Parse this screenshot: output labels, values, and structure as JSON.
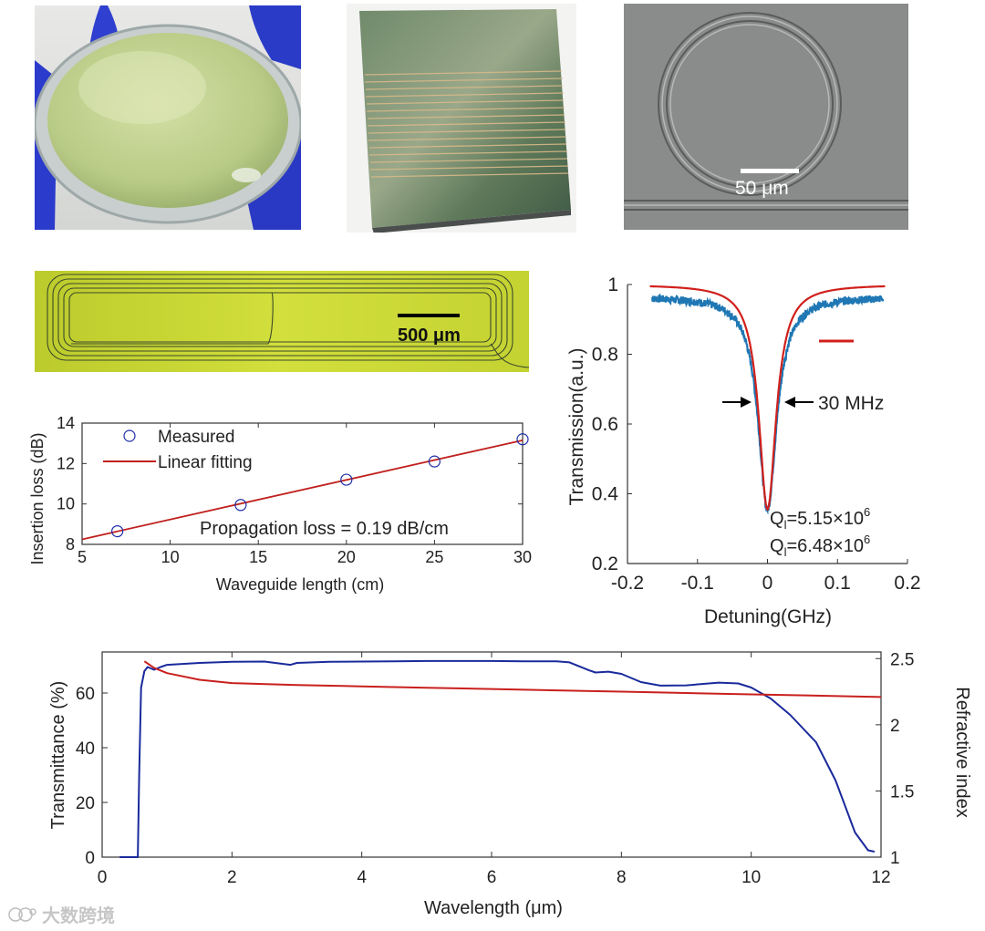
{
  "photos": {
    "sem_scale_label": "50 μm",
    "micro_scale_label": "500 μm"
  },
  "watermark": "大数跨境",
  "chart_data": [
    {
      "type": "scatter",
      "xlabel": "Waveguide length (cm)",
      "ylabel": "Insertion loss (dB)",
      "xlim": [
        5,
        30
      ],
      "ylim": [
        8,
        14
      ],
      "xticks": [
        5,
        10,
        15,
        20,
        25,
        30
      ],
      "yticks": [
        8,
        10,
        12,
        14
      ],
      "legend": [
        "Measured",
        "Linear fitting"
      ],
      "legend_position": "top-left",
      "series": [
        {
          "name": "Measured",
          "x": [
            7,
            14,
            20,
            25,
            30
          ],
          "y": [
            8.65,
            9.95,
            11.2,
            12.1,
            13.2
          ],
          "color": "#1f2fa8",
          "marker": "circle"
        },
        {
          "name": "Linear fitting",
          "x": [
            5,
            30
          ],
          "y": [
            8.25,
            13.15
          ],
          "color": "#c0201e",
          "style": "line"
        }
      ],
      "annotation": "Propagation loss = 0.19 dB/cm"
    },
    {
      "type": "line",
      "xlabel": "Detuning(GHz)",
      "ylabel": "Transmission(a.u.)",
      "xlim": [
        -0.2,
        0.2
      ],
      "ylim": [
        0.2,
        1
      ],
      "xticks": [
        -0.2,
        -0.1,
        0,
        0.1,
        0.2
      ],
      "yticks": [
        0.2,
        0.4,
        0.6,
        0.8,
        1
      ],
      "series": [
        {
          "name": "",
          "color": "#1f77b4",
          "x_range": [
            -0.165,
            0.165
          ],
          "baseline": 0.965,
          "min": 0.355,
          "hwhm": 0.016
        },
        {
          "name": "",
          "color": "#d0201c",
          "x_range": [
            -0.168,
            0.168
          ],
          "baseline": 1.0,
          "min": 0.355,
          "hwhm": 0.015
        }
      ],
      "annotation": "30 MHz",
      "q_labels": [
        "Q",
        "=5.15×10",
        "Q",
        "=6.48×10"
      ],
      "q_sub": "l",
      "q_sup": "6"
    },
    {
      "type": "line",
      "xlabel": "Wavelength (μm)",
      "ylabel": "Transmittance (%)",
      "ylabel_right": "Refractive index",
      "xlim": [
        0,
        12
      ],
      "ylim": [
        0,
        75
      ],
      "ylim_right": [
        1,
        2.55
      ],
      "xticks": [
        0,
        2,
        4,
        6,
        8,
        10,
        12
      ],
      "yticks": [
        0,
        20,
        40,
        60
      ],
      "yticks_right": [
        1,
        1.5,
        2,
        2.5
      ],
      "series": [
        {
          "name": "",
          "axis": "left",
          "color": "#1a2a9c",
          "x": [
            0.55,
            0.57,
            0.6,
            0.65,
            0.7,
            0.8,
            0.9,
            1.0,
            1.5,
            2,
            2.5,
            2.9,
            3.0,
            3.5,
            4,
            4.5,
            5,
            5.5,
            6,
            6.5,
            7,
            7.2,
            7.5,
            7.6,
            7.8,
            8,
            8.3,
            8.6,
            9,
            9.5,
            9.8,
            10,
            10.3,
            10.6,
            11,
            11.3,
            11.6,
            11.8,
            11.9
          ],
          "y": [
            0,
            30,
            62,
            68,
            69.5,
            68.5,
            69.5,
            70.3,
            71,
            71.4,
            71.5,
            70.3,
            71,
            71.4,
            71.5,
            71.6,
            71.7,
            71.7,
            71.7,
            71.6,
            71.6,
            71.2,
            68.3,
            67.5,
            67.8,
            67,
            64,
            62.7,
            62.8,
            63.8,
            63.5,
            62,
            58,
            52,
            42,
            28,
            9,
            2.5,
            2
          ]
        },
        {
          "name": "",
          "axis": "right",
          "color": "#c8201e",
          "x": [
            0.65,
            0.8,
            1,
            1.5,
            2,
            3,
            4,
            5,
            6,
            7,
            8,
            9,
            10,
            11,
            12
          ],
          "y": [
            2.48,
            2.43,
            2.39,
            2.34,
            2.315,
            2.3,
            2.29,
            2.28,
            2.27,
            2.26,
            2.25,
            2.24,
            2.23,
            2.22,
            2.21
          ]
        }
      ]
    }
  ]
}
